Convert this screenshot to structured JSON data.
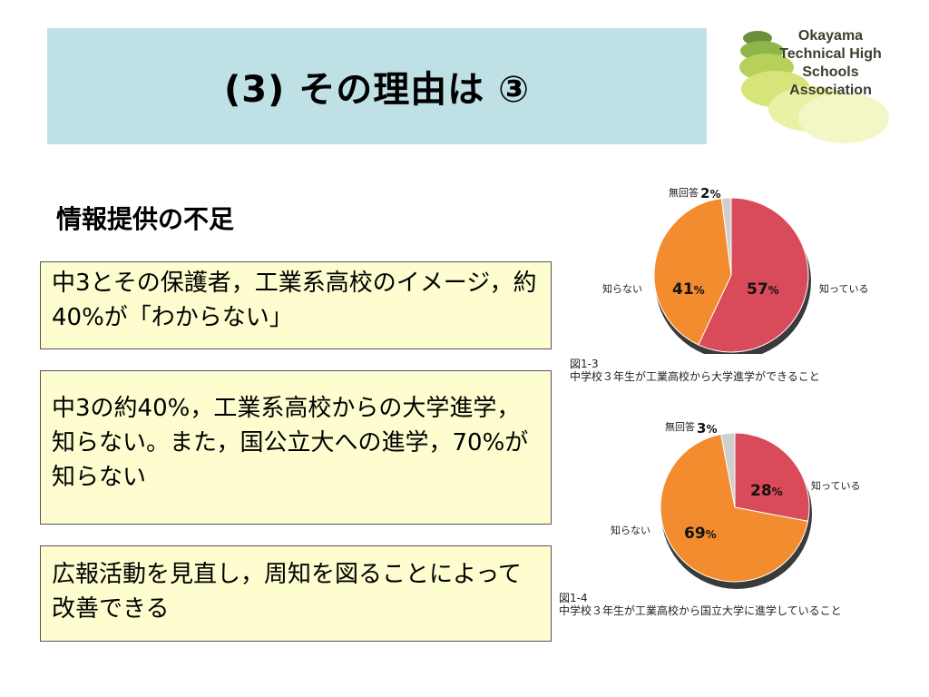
{
  "slide": {
    "title": "(3) その理由は ③",
    "logo": {
      "line1": "Okayama",
      "line2": "Technical High Schools",
      "line3": "Association"
    },
    "heading": "情報提供の不足",
    "boxes": [
      {
        "text": "中3とその保護者，工業系高校のイメージ，約40%が「わからない」"
      },
      {
        "text": "中3の約40%，工業系高校からの大学進学，知らない。また，国公立大への進学，70%が知らない"
      },
      {
        "text": "広報活動を見直し，周知を図ることによって改善できる"
      }
    ]
  },
  "colors": {
    "knows": "#d94b5a",
    "doesnt_know": "#f28c2e",
    "no_answer": "#cfcfcf",
    "title_band": "#bfe1e6",
    "box_fill": "#fdfdd0"
  },
  "chart_data": [
    {
      "type": "pie",
      "figure_label": "図1-3",
      "caption": "中学校３年生が工業高校から大学進学ができること",
      "slices": [
        {
          "label": "知っている",
          "value": 57,
          "value_text": "57",
          "color": "#d94b5a"
        },
        {
          "label": "知らない",
          "value": 41,
          "value_text": "41",
          "color": "#f28c2e"
        },
        {
          "label": "無回答",
          "value": 2,
          "value_text": "2",
          "color": "#cfcfcf"
        }
      ],
      "unit": "%"
    },
    {
      "type": "pie",
      "figure_label": "図1-4",
      "caption": "中学校３年生が工業高校から国立大学に進学していること",
      "slices": [
        {
          "label": "知っている",
          "value": 28,
          "value_text": "28",
          "color": "#d94b5a"
        },
        {
          "label": "知らない",
          "value": 69,
          "value_text": "69",
          "color": "#f28c2e"
        },
        {
          "label": "無回答",
          "value": 3,
          "value_text": "3",
          "color": "#cfcfcf"
        }
      ],
      "unit": "%"
    }
  ]
}
